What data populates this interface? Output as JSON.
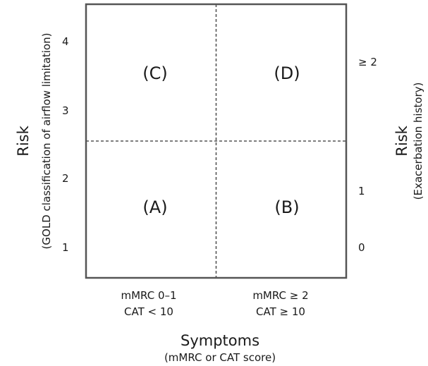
{
  "quadrants": {
    "top_left": "(C)",
    "top_right": "(D)",
    "bottom_left": "(A)",
    "bottom_right": "(B)"
  },
  "left_axis": {
    "title": "Risk",
    "subtitle": "(GOLD classification of airflow limitation)",
    "ticks": [
      "4",
      "3",
      "2",
      "1"
    ]
  },
  "right_axis": {
    "title": "Risk",
    "subtitle": "(Exacerbation history)",
    "ticks": [
      "≥ 2",
      "1",
      "0"
    ]
  },
  "bottom_axis": {
    "title": "Symptoms",
    "subtitle": "(mMRC or CAT score)",
    "left_category": {
      "line1": "mMRC 0–1",
      "line2": "CAT < 10"
    },
    "right_category": {
      "line1": "mMRC ≥ 2",
      "line2": "CAT ≥ 10"
    }
  },
  "colors": {
    "frame": "#555555",
    "divider": "#555555",
    "text": "#1a1a1a"
  }
}
